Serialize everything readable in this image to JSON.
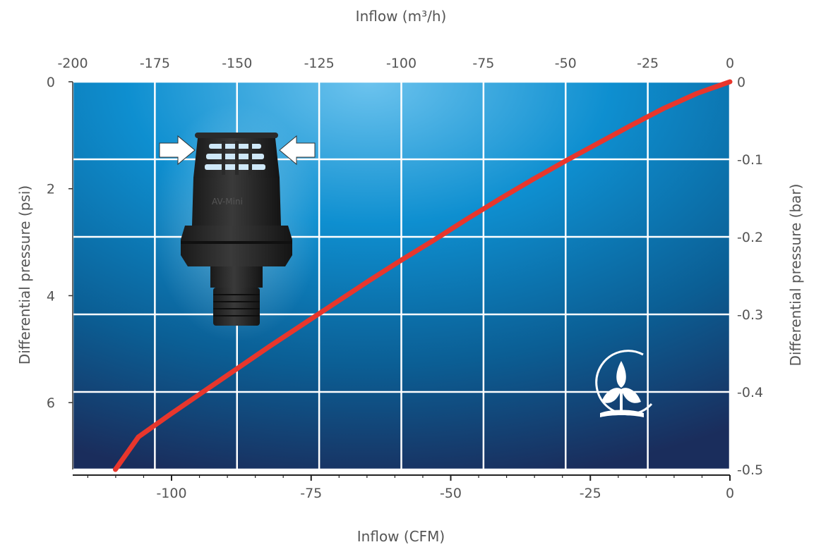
{
  "chart_data": {
    "type": "line",
    "top_axis": {
      "label": "Inflow (m³/h)",
      "range": [
        -200,
        0
      ],
      "ticks": [
        "-200",
        "-175",
        "-150",
        "-125",
        "-100",
        "-75",
        "-50",
        "-25",
        "0"
      ]
    },
    "bottom_axis": {
      "label": "Inflow (CFM)",
      "range": [
        -117.7,
        0
      ],
      "ticks": [
        {
          "value": -100,
          "label": "-100"
        },
        {
          "value": -75,
          "label": "-75"
        },
        {
          "value": -50,
          "label": "-50"
        },
        {
          "value": -25,
          "label": "-25"
        },
        {
          "value": 0,
          "label": "0"
        }
      ]
    },
    "left_axis": {
      "label": "Differential pressure (psi)",
      "range": [
        0,
        7.25
      ],
      "ticks": [
        {
          "value": 0,
          "label": "0"
        },
        {
          "value": 2,
          "label": "2"
        },
        {
          "value": 4,
          "label": "4"
        },
        {
          "value": 6,
          "label": "6"
        }
      ]
    },
    "right_axis": {
      "label": "Differential pressure (bar)",
      "range": [
        0,
        -0.5
      ],
      "ticks": [
        "0",
        "-0.1",
        "-0.2",
        "-0.3",
        "-0.4",
        "-0.5"
      ]
    },
    "series": [
      {
        "color": "#e8362c",
        "x_m3h": [
          0,
          -10,
          -20,
          -30,
          -40,
          -50,
          -60,
          -70,
          -80,
          -90,
          -100,
          -110,
          -120,
          -130,
          -140,
          -150,
          -160,
          -170,
          -180,
          -187
        ],
        "y_bar": [
          0,
          -0.015,
          -0.034,
          -0.056,
          -0.079,
          -0.102,
          -0.126,
          -0.151,
          -0.177,
          -0.204,
          -0.23,
          -0.257,
          -0.285,
          -0.313,
          -0.341,
          -0.37,
          -0.399,
          -0.428,
          -0.458,
          -0.5
        ]
      }
    ],
    "grid": true,
    "background_gradient": [
      "#5fb8e8",
      "#0d7fbf",
      "#1f3a66"
    ],
    "grid_color": "#ffffff"
  },
  "product_icon": "valve-product-photo",
  "logo_icon": "leaf-logo-icon"
}
